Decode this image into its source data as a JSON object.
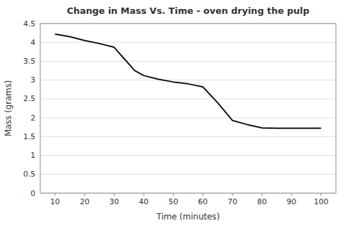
{
  "chart_data": {
    "type": "line",
    "title": "Change in Mass Vs. Time - oven drying the pulp",
    "xlabel": "Time (minutes)",
    "ylabel": "Mass (grams)",
    "x": [
      10,
      15,
      20,
      25,
      30,
      33,
      37,
      40,
      45,
      50,
      55,
      60,
      65,
      70,
      75,
      80,
      85,
      90,
      95,
      100
    ],
    "values": [
      4.22,
      4.15,
      4.05,
      3.97,
      3.87,
      3.6,
      3.25,
      3.12,
      3.02,
      2.95,
      2.9,
      2.82,
      2.4,
      1.93,
      1.82,
      1.73,
      1.72,
      1.72,
      1.72,
      1.72
    ],
    "color": "#111111",
    "xlim": [
      5,
      105
    ],
    "ylim": [
      0,
      4.5
    ],
    "xticks": [
      10,
      20,
      30,
      40,
      50,
      60,
      70,
      80,
      90,
      100
    ],
    "yticks": [
      0,
      0.5,
      1,
      1.5,
      2,
      2.5,
      3,
      3.5,
      4,
      4.5
    ],
    "grid": true
  }
}
